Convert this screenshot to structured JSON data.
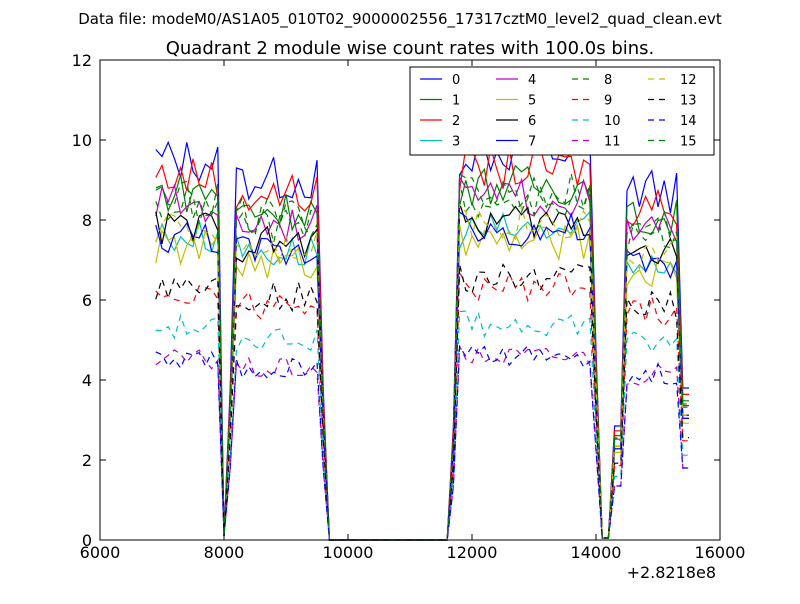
{
  "suptitle": "Data file: modeM0/AS1A05_010T02_9000002556_17317cztM0_level2_quad_clean.evt",
  "chart_data": {
    "type": "line",
    "title": "Quadrant 2 module wise count rates with 100.0s bins.",
    "xlabel": "",
    "ylabel": "",
    "x_offset_label": "+2.8218e8",
    "xlim": [
      6000,
      16000
    ],
    "ylim": [
      0,
      12
    ],
    "xticks": [
      "6000",
      "8000",
      "10000",
      "12000",
      "14000",
      "16000"
    ],
    "yticks": [
      "0",
      "2",
      "4",
      "6",
      "8",
      "10",
      "12"
    ],
    "grid": false,
    "legend_position": "top-right",
    "legend_columns": 4,
    "x": [
      6900,
      7000,
      7100,
      7200,
      7300,
      7400,
      7500,
      7600,
      7700,
      7800,
      7900,
      8000,
      8100,
      8200,
      8300,
      8400,
      8500,
      8600,
      8700,
      8800,
      8900,
      9000,
      9100,
      9200,
      9300,
      9400,
      9500,
      9600,
      9700,
      9800,
      9900,
      10000,
      10100,
      10200,
      10300,
      10400,
      10500,
      10600,
      10700,
      10800,
      10900,
      11000,
      11100,
      11200,
      11300,
      11400,
      11500,
      11600,
      11700,
      11800,
      11900,
      12000,
      12100,
      12200,
      12300,
      12400,
      12500,
      12600,
      12700,
      12800,
      12900,
      13000,
      13100,
      13200,
      13300,
      13400,
      13500,
      13600,
      13700,
      13800,
      13900,
      14000,
      14100,
      14200,
      14300,
      14400,
      14500,
      14600,
      14700,
      14800,
      14900,
      15000,
      15100,
      15200,
      15300,
      15400,
      15500
    ],
    "on_levels": [
      9.5,
      8.7,
      9.1,
      7.6,
      8.4,
      7.3,
      7.8,
      7.6,
      8.3,
      6.2,
      5.3,
      4.5,
      7.8,
      6.4,
      4.5,
      8.5
    ],
    "series": [
      {
        "name": "0",
        "color": "#0000ff",
        "dash": "solid"
      },
      {
        "name": "1",
        "color": "#008000",
        "dash": "solid"
      },
      {
        "name": "2",
        "color": "#ff0000",
        "dash": "solid"
      },
      {
        "name": "3",
        "color": "#00bfbf",
        "dash": "solid"
      },
      {
        "name": "4",
        "color": "#bf00bf",
        "dash": "solid"
      },
      {
        "name": "5",
        "color": "#bfbf00",
        "dash": "solid"
      },
      {
        "name": "6",
        "color": "#000000",
        "dash": "solid"
      },
      {
        "name": "7",
        "color": "#0000ff",
        "dash": "solid"
      },
      {
        "name": "8",
        "color": "#008000",
        "dash": "dashed"
      },
      {
        "name": "9",
        "color": "#ff0000",
        "dash": "dashed"
      },
      {
        "name": "10",
        "color": "#00bfbf",
        "dash": "dashed"
      },
      {
        "name": "11",
        "color": "#bf00bf",
        "dash": "dashed"
      },
      {
        "name": "12",
        "color": "#bfbf00",
        "dash": "dashed"
      },
      {
        "name": "13",
        "color": "#000000",
        "dash": "dashed"
      },
      {
        "name": "14",
        "color": "#0000ff",
        "dash": "dashed"
      },
      {
        "name": "15",
        "color": "#008000",
        "dash": "dashed"
      }
    ]
  }
}
